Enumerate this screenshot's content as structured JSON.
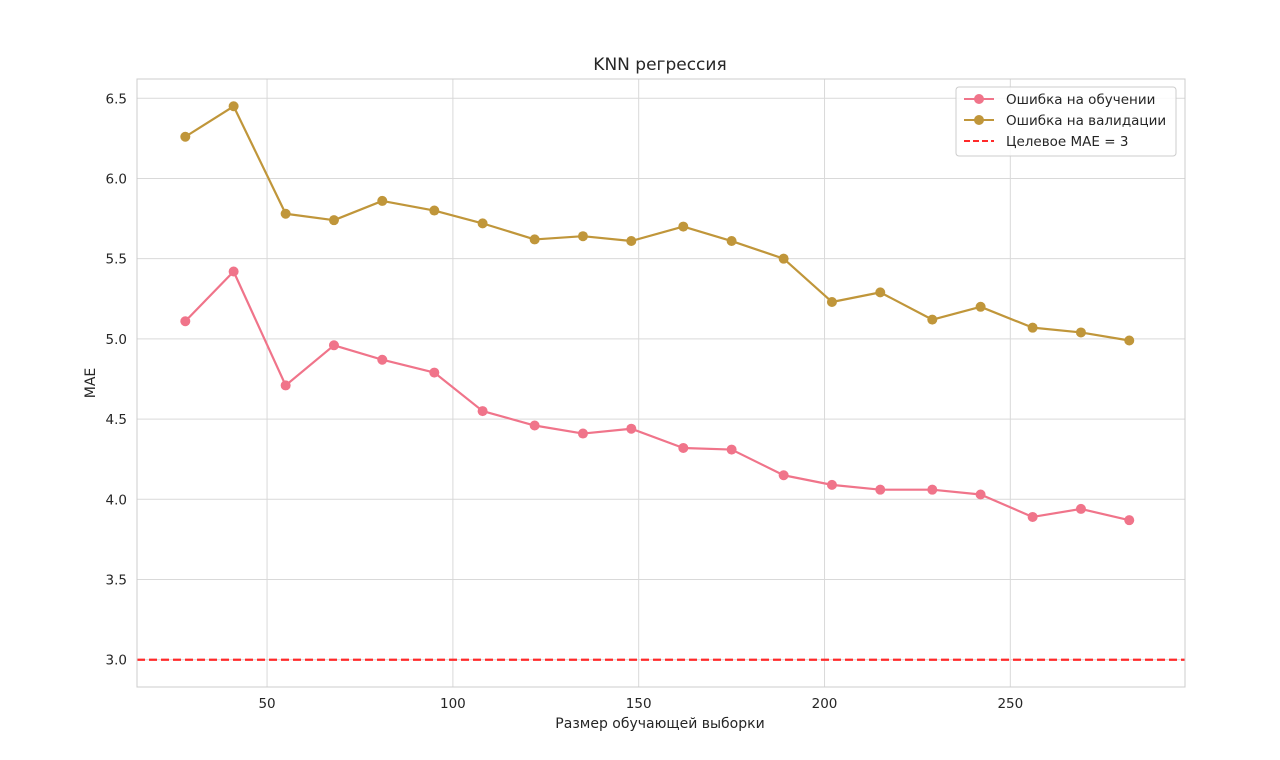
{
  "chart_data": {
    "type": "line",
    "title": "KNN регрессия",
    "xlabel": "Размер обучающей выборки",
    "ylabel": "MAE",
    "xlim": [
      15,
      297
    ],
    "ylim": [
      2.83,
      6.62
    ],
    "xticks": [
      50,
      100,
      150,
      200,
      250
    ],
    "yticks": [
      3.0,
      3.5,
      4.0,
      4.5,
      5.0,
      5.5,
      6.0,
      6.5
    ],
    "grid": true,
    "legend_position": "top-right",
    "x": [
      28,
      41,
      55,
      68,
      81,
      95,
      108,
      122,
      135,
      148,
      162,
      175,
      189,
      202,
      215,
      229,
      242,
      256,
      269,
      282
    ],
    "series": [
      {
        "name": "Ошибка на обучении",
        "color": "#f0748a",
        "marker": "circle",
        "values": [
          5.11,
          5.42,
          4.71,
          4.96,
          4.87,
          4.79,
          4.55,
          4.46,
          4.41,
          4.44,
          4.32,
          4.31,
          4.15,
          4.09,
          4.06,
          4.06,
          4.03,
          3.89,
          3.94,
          3.87
        ]
      },
      {
        "name": "Ошибка на валидации",
        "color": "#c0963a",
        "marker": "circle",
        "values": [
          6.26,
          6.45,
          5.78,
          5.74,
          5.86,
          5.8,
          5.72,
          5.62,
          5.64,
          5.61,
          5.7,
          5.61,
          5.5,
          5.23,
          5.29,
          5.12,
          5.2,
          5.07,
          5.04,
          4.99
        ]
      }
    ],
    "reference_lines": [
      {
        "name": "Целевое MAE = 3",
        "y": 3.0,
        "color": "#ff2a2a",
        "style": "dashed"
      }
    ]
  }
}
